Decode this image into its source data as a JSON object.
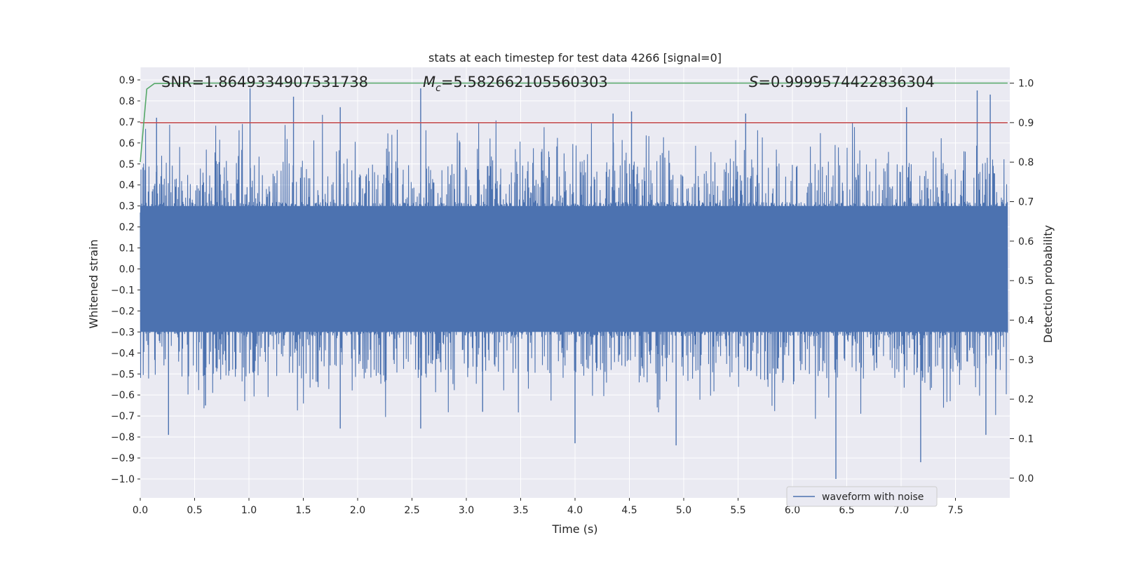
{
  "chart_data": {
    "type": "line",
    "title": "stats at each timestep for test data 4266 [signal=0]",
    "xlabel": "Time (s)",
    "ylabel": "Whitened strain",
    "y2label": "Detection probability",
    "xlim": [
      0.0,
      8.0
    ],
    "ylim": [
      -1.09,
      0.96
    ],
    "y2lim": [
      -0.05,
      1.04
    ],
    "xticks": [
      "0.0",
      "0.5",
      "1.0",
      "1.5",
      "2.0",
      "2.5",
      "3.0",
      "3.5",
      "4.0",
      "4.5",
      "5.0",
      "5.5",
      "6.0",
      "6.5",
      "7.0",
      "7.5"
    ],
    "xtick_values": [
      0.0,
      0.5,
      1.0,
      1.5,
      2.0,
      2.5,
      3.0,
      3.5,
      4.0,
      4.5,
      5.0,
      5.5,
      6.0,
      6.5,
      7.0,
      7.5
    ],
    "yticks": [
      "0.9",
      "0.8",
      "0.7",
      "0.6",
      "0.5",
      "0.4",
      "0.3",
      "0.2",
      "0.1",
      "0.0",
      "−0.1",
      "−0.2",
      "−0.3",
      "−0.4",
      "−0.5",
      "−0.6",
      "−0.7",
      "−0.8",
      "−0.9",
      "−1.0"
    ],
    "ytick_values": [
      0.9,
      0.8,
      0.7,
      0.6,
      0.5,
      0.4,
      0.3,
      0.2,
      0.1,
      0.0,
      -0.1,
      -0.2,
      -0.3,
      -0.4,
      -0.5,
      -0.6,
      -0.7,
      -0.8,
      -0.9,
      -1.0
    ],
    "y2ticks": [
      "1.0",
      "0.9",
      "0.8",
      "0.7",
      "0.6",
      "0.5",
      "0.4",
      "0.3",
      "0.2",
      "0.1",
      "0.0"
    ],
    "y2tick_values": [
      1.0,
      0.9,
      0.8,
      0.7,
      0.6,
      0.5,
      0.4,
      0.3,
      0.2,
      0.1,
      0.0
    ],
    "annotations": {
      "snr": "SNR=1.8649334907531738",
      "mc_symbol": "M",
      "mc_subscript": "c",
      "mc_value": "=5.582662105560303",
      "s_symbol": "S",
      "s_value": "=0.9999574422836304"
    },
    "series": [
      {
        "name": "waveform with noise",
        "axis": "left",
        "color": "#4c72b0",
        "kind": "noise",
        "duration_s": 7.98,
        "core_band": [
          -0.3,
          0.3
        ],
        "spikes": [
          {
            "t": 0.26,
            "v": -0.79
          },
          {
            "t": 0.15,
            "v": 0.72
          },
          {
            "t": 1.01,
            "v": 0.86
          },
          {
            "t": 1.41,
            "v": 0.82
          },
          {
            "t": 1.84,
            "v": 0.77
          },
          {
            "t": 1.84,
            "v": -0.76
          },
          {
            "t": 2.58,
            "v": 0.86
          },
          {
            "t": 2.58,
            "v": -0.76
          },
          {
            "t": 4.0,
            "v": -0.83
          },
          {
            "t": 4.35,
            "v": 0.74
          },
          {
            "t": 4.52,
            "v": 0.75
          },
          {
            "t": 4.93,
            "v": -0.84
          },
          {
            "t": 6.4,
            "v": -1.0
          },
          {
            "t": 7.05,
            "v": 0.77
          },
          {
            "t": 7.18,
            "v": -0.92
          },
          {
            "t": 7.7,
            "v": 0.85
          },
          {
            "t": 7.82,
            "v": 0.83
          },
          {
            "t": 7.78,
            "v": -0.79
          },
          {
            "t": 0.6,
            "v": -0.65
          },
          {
            "t": 3.15,
            "v": -0.68
          },
          {
            "t": 5.57,
            "v": 0.74
          }
        ]
      },
      {
        "name": "threshold",
        "axis": "right",
        "color": "#c44e52",
        "x": [
          0.0,
          7.98
        ],
        "values": [
          0.9,
          0.9
        ]
      },
      {
        "name": "detection probability",
        "axis": "right",
        "color": "#55a868",
        "x": [
          0.0,
          0.06,
          0.13,
          0.5,
          1.0,
          2.0,
          4.0,
          6.0,
          7.98
        ],
        "values": [
          0.8,
          0.985,
          0.999,
          1.0,
          1.0,
          1.0,
          1.0,
          1.0,
          1.0
        ]
      }
    ],
    "legend": {
      "entries": [
        "waveform with noise"
      ],
      "placement": "lower-right"
    },
    "grid": true
  },
  "colors": {
    "figure_bg": "#ffffff",
    "axes_bg": "#eaeaf2",
    "grid": "#ffffff",
    "text": "#262626"
  }
}
